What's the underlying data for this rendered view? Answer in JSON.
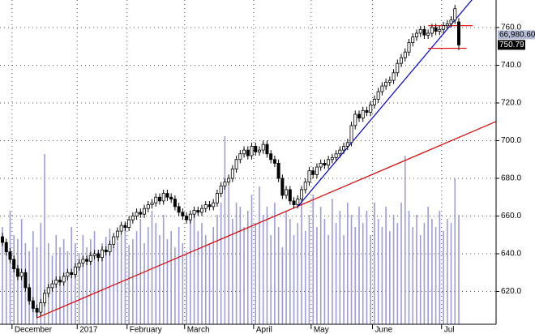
{
  "chart_data": {
    "type": "candlestick",
    "categories": [
      null,
      null,
      null,
      "December",
      null,
      null,
      null,
      null,
      null,
      null,
      null,
      null,
      null,
      null,
      null,
      null,
      null,
      null,
      null,
      null,
      "2017",
      null,
      null,
      null,
      null,
      null,
      null,
      null,
      null,
      null,
      null,
      null,
      null,
      "February",
      null,
      null,
      null,
      null,
      null,
      null,
      null,
      null,
      null,
      null,
      null,
      null,
      null,
      null,
      "March",
      null,
      null,
      null,
      null,
      null,
      null,
      null,
      null,
      null,
      null,
      null,
      null,
      null,
      null,
      null,
      null,
      null,
      "April",
      null,
      null,
      null,
      null,
      null,
      null,
      null,
      null,
      null,
      null,
      null,
      null,
      null,
      null,
      "May",
      null,
      null,
      null,
      null,
      null,
      null,
      null,
      null,
      null,
      null,
      null,
      null,
      null,
      null,
      null,
      "June",
      null,
      null,
      null,
      null,
      null,
      null,
      null,
      null,
      null,
      null,
      null,
      null,
      null,
      null,
      null,
      null,
      null,
      "Jul",
      null,
      null,
      null,
      null
    ],
    "open": [
      649,
      646,
      641,
      637,
      632,
      628,
      630,
      622,
      615,
      611,
      609,
      614,
      619,
      622,
      624,
      626,
      625,
      628,
      630,
      629,
      633,
      635,
      637,
      636,
      639,
      640,
      638,
      642,
      641,
      645,
      649,
      652,
      655,
      654,
      658,
      660,
      662,
      661,
      664,
      666,
      667,
      670,
      668,
      672,
      670,
      669,
      665,
      662,
      660,
      658,
      661,
      663,
      662,
      664,
      666,
      665,
      667,
      672,
      676,
      678,
      680,
      685,
      690,
      693,
      695,
      692,
      697,
      694,
      695,
      698,
      693,
      690,
      688,
      680,
      671,
      674,
      668,
      666,
      669,
      674,
      678,
      684,
      682,
      686,
      688,
      687,
      690,
      691,
      693,
      695,
      697,
      699,
      708,
      714,
      712,
      716,
      715,
      719,
      722,
      726,
      729,
      731,
      732,
      736,
      741,
      744,
      747,
      752,
      755,
      757,
      759,
      756,
      757,
      760,
      758,
      759,
      761,
      762,
      764,
      763
    ],
    "high": [
      651,
      648,
      643,
      639,
      634,
      632,
      632,
      624,
      617,
      613,
      616,
      621,
      624,
      626,
      628,
      628,
      630,
      632,
      632,
      635,
      637,
      639,
      639,
      641,
      642,
      642,
      644,
      644,
      647,
      651,
      654,
      657,
      657,
      660,
      662,
      664,
      664,
      666,
      668,
      669,
      672,
      672,
      674,
      674,
      672,
      671,
      667,
      664,
      662,
      663,
      665,
      665,
      666,
      668,
      668,
      669,
      674,
      678,
      680,
      682,
      687,
      692,
      695,
      697,
      697,
      699,
      699,
      697,
      700,
      700,
      695,
      692,
      690,
      682,
      676,
      676,
      670,
      671,
      676,
      680,
      686,
      686,
      688,
      690,
      690,
      692,
      693,
      695,
      697,
      699,
      701,
      710,
      716,
      716,
      718,
      718,
      721,
      724,
      728,
      731,
      733,
      734,
      738,
      743,
      746,
      749,
      754,
      757,
      759,
      761,
      761,
      759,
      762,
      762,
      761,
      763,
      764,
      766,
      772,
      765
    ],
    "low": [
      644,
      639,
      635,
      630,
      626,
      626,
      620,
      613,
      609,
      606,
      607,
      612,
      617,
      620,
      622,
      623,
      623,
      626,
      627,
      627,
      631,
      633,
      634,
      634,
      637,
      636,
      636,
      639,
      639,
      643,
      647,
      650,
      652,
      652,
      656,
      658,
      659,
      659,
      662,
      664,
      665,
      666,
      666,
      668,
      667,
      663,
      660,
      658,
      656,
      656,
      659,
      660,
      660,
      662,
      663,
      663,
      665,
      670,
      674,
      676,
      678,
      683,
      688,
      691,
      690,
      690,
      692,
      692,
      693,
      691,
      688,
      686,
      678,
      669,
      669,
      666,
      664,
      664,
      667,
      672,
      676,
      680,
      680,
      684,
      685,
      685,
      688,
      689,
      691,
      693,
      695,
      697,
      706,
      710,
      710,
      713,
      713,
      717,
      720,
      724,
      727,
      729,
      730,
      734,
      739,
      742,
      745,
      750,
      753,
      755,
      754,
      754,
      755,
      756,
      756,
      757,
      759,
      760,
      762,
      748
    ],
    "close": [
      646,
      641,
      637,
      632,
      628,
      630,
      622,
      615,
      611,
      609,
      614,
      619,
      622,
      624,
      626,
      625,
      628,
      630,
      629,
      633,
      635,
      637,
      636,
      639,
      640,
      638,
      642,
      641,
      645,
      649,
      652,
      655,
      654,
      658,
      660,
      662,
      661,
      664,
      666,
      667,
      670,
      668,
      672,
      670,
      669,
      665,
      662,
      660,
      658,
      661,
      663,
      662,
      664,
      666,
      665,
      667,
      672,
      676,
      678,
      680,
      685,
      690,
      693,
      695,
      692,
      697,
      694,
      695,
      698,
      693,
      690,
      688,
      680,
      671,
      674,
      668,
      666,
      669,
      674,
      678,
      684,
      682,
      686,
      688,
      687,
      690,
      691,
      693,
      695,
      697,
      699,
      708,
      714,
      712,
      716,
      715,
      719,
      722,
      726,
      729,
      731,
      732,
      736,
      741,
      744,
      747,
      752,
      755,
      757,
      759,
      756,
      757,
      760,
      758,
      759,
      761,
      762,
      764,
      770,
      750.79
    ],
    "volume": [
      120,
      95,
      140,
      110,
      105,
      130,
      100,
      90,
      115,
      95,
      125,
      210,
      100,
      85,
      110,
      95,
      105,
      90,
      120,
      100,
      88,
      110,
      95,
      105,
      115,
      92,
      100,
      108,
      118,
      95,
      102,
      110,
      125,
      98,
      105,
      115,
      130,
      100,
      120,
      140,
      125,
      110,
      135,
      105,
      115,
      95,
      120,
      100,
      90,
      130,
      140,
      115,
      125,
      110,
      100,
      120,
      135,
      150,
      232,
      170,
      130,
      150,
      145,
      120,
      140,
      160,
      125,
      170,
      135,
      145,
      110,
      150,
      120,
      95,
      140,
      130,
      110,
      125,
      150,
      115,
      135,
      160,
      120,
      145,
      130,
      110,
      155,
      125,
      140,
      110,
      150,
      135,
      120,
      145,
      125,
      140,
      110,
      150,
      130,
      120,
      145,
      115,
      135,
      125,
      150,
      208,
      140,
      120,
      135,
      110,
      125,
      145,
      130,
      120,
      140,
      115,
      130,
      125,
      180,
      135
    ],
    "last_volume": {
      "value": 66980.6,
      "label": "66,980.60"
    },
    "up_color": "#ffffff",
    "down_color": "#000000",
    "volume_color": "#9c9cd8",
    "ylim": [
      602.58,
      774.62
    ],
    "y2lim": [
      0,
      400
    ],
    "yticks": [
      {
        "value": 620,
        "label": "620.0"
      },
      {
        "value": 640,
        "label": "640.0"
      },
      {
        "value": 660,
        "label": "660.0"
      },
      {
        "value": 680,
        "label": "680.0"
      },
      {
        "value": 700,
        "label": "700.0"
      },
      {
        "value": 720,
        "label": "720.0"
      },
      {
        "value": 740,
        "label": "740.0"
      },
      {
        "value": 760,
        "label": "760.0"
      }
    ],
    "grid": true,
    "trendlines": [
      {
        "color": "#e00000",
        "points": [
          [
            9,
            606
          ],
          [
            119,
            701.7
          ]
        ]
      },
      {
        "color": "#0000e0",
        "points": [
          [
            77,
            665
          ],
          [
            118,
            764
          ]
        ]
      }
    ],
    "levels": [
      {
        "color": "#e00000",
        "value": 761,
        "from": 111,
        "to": 122.6
      },
      {
        "color": "#e00000",
        "value": 749,
        "from": 111,
        "to": 121
      }
    ]
  }
}
